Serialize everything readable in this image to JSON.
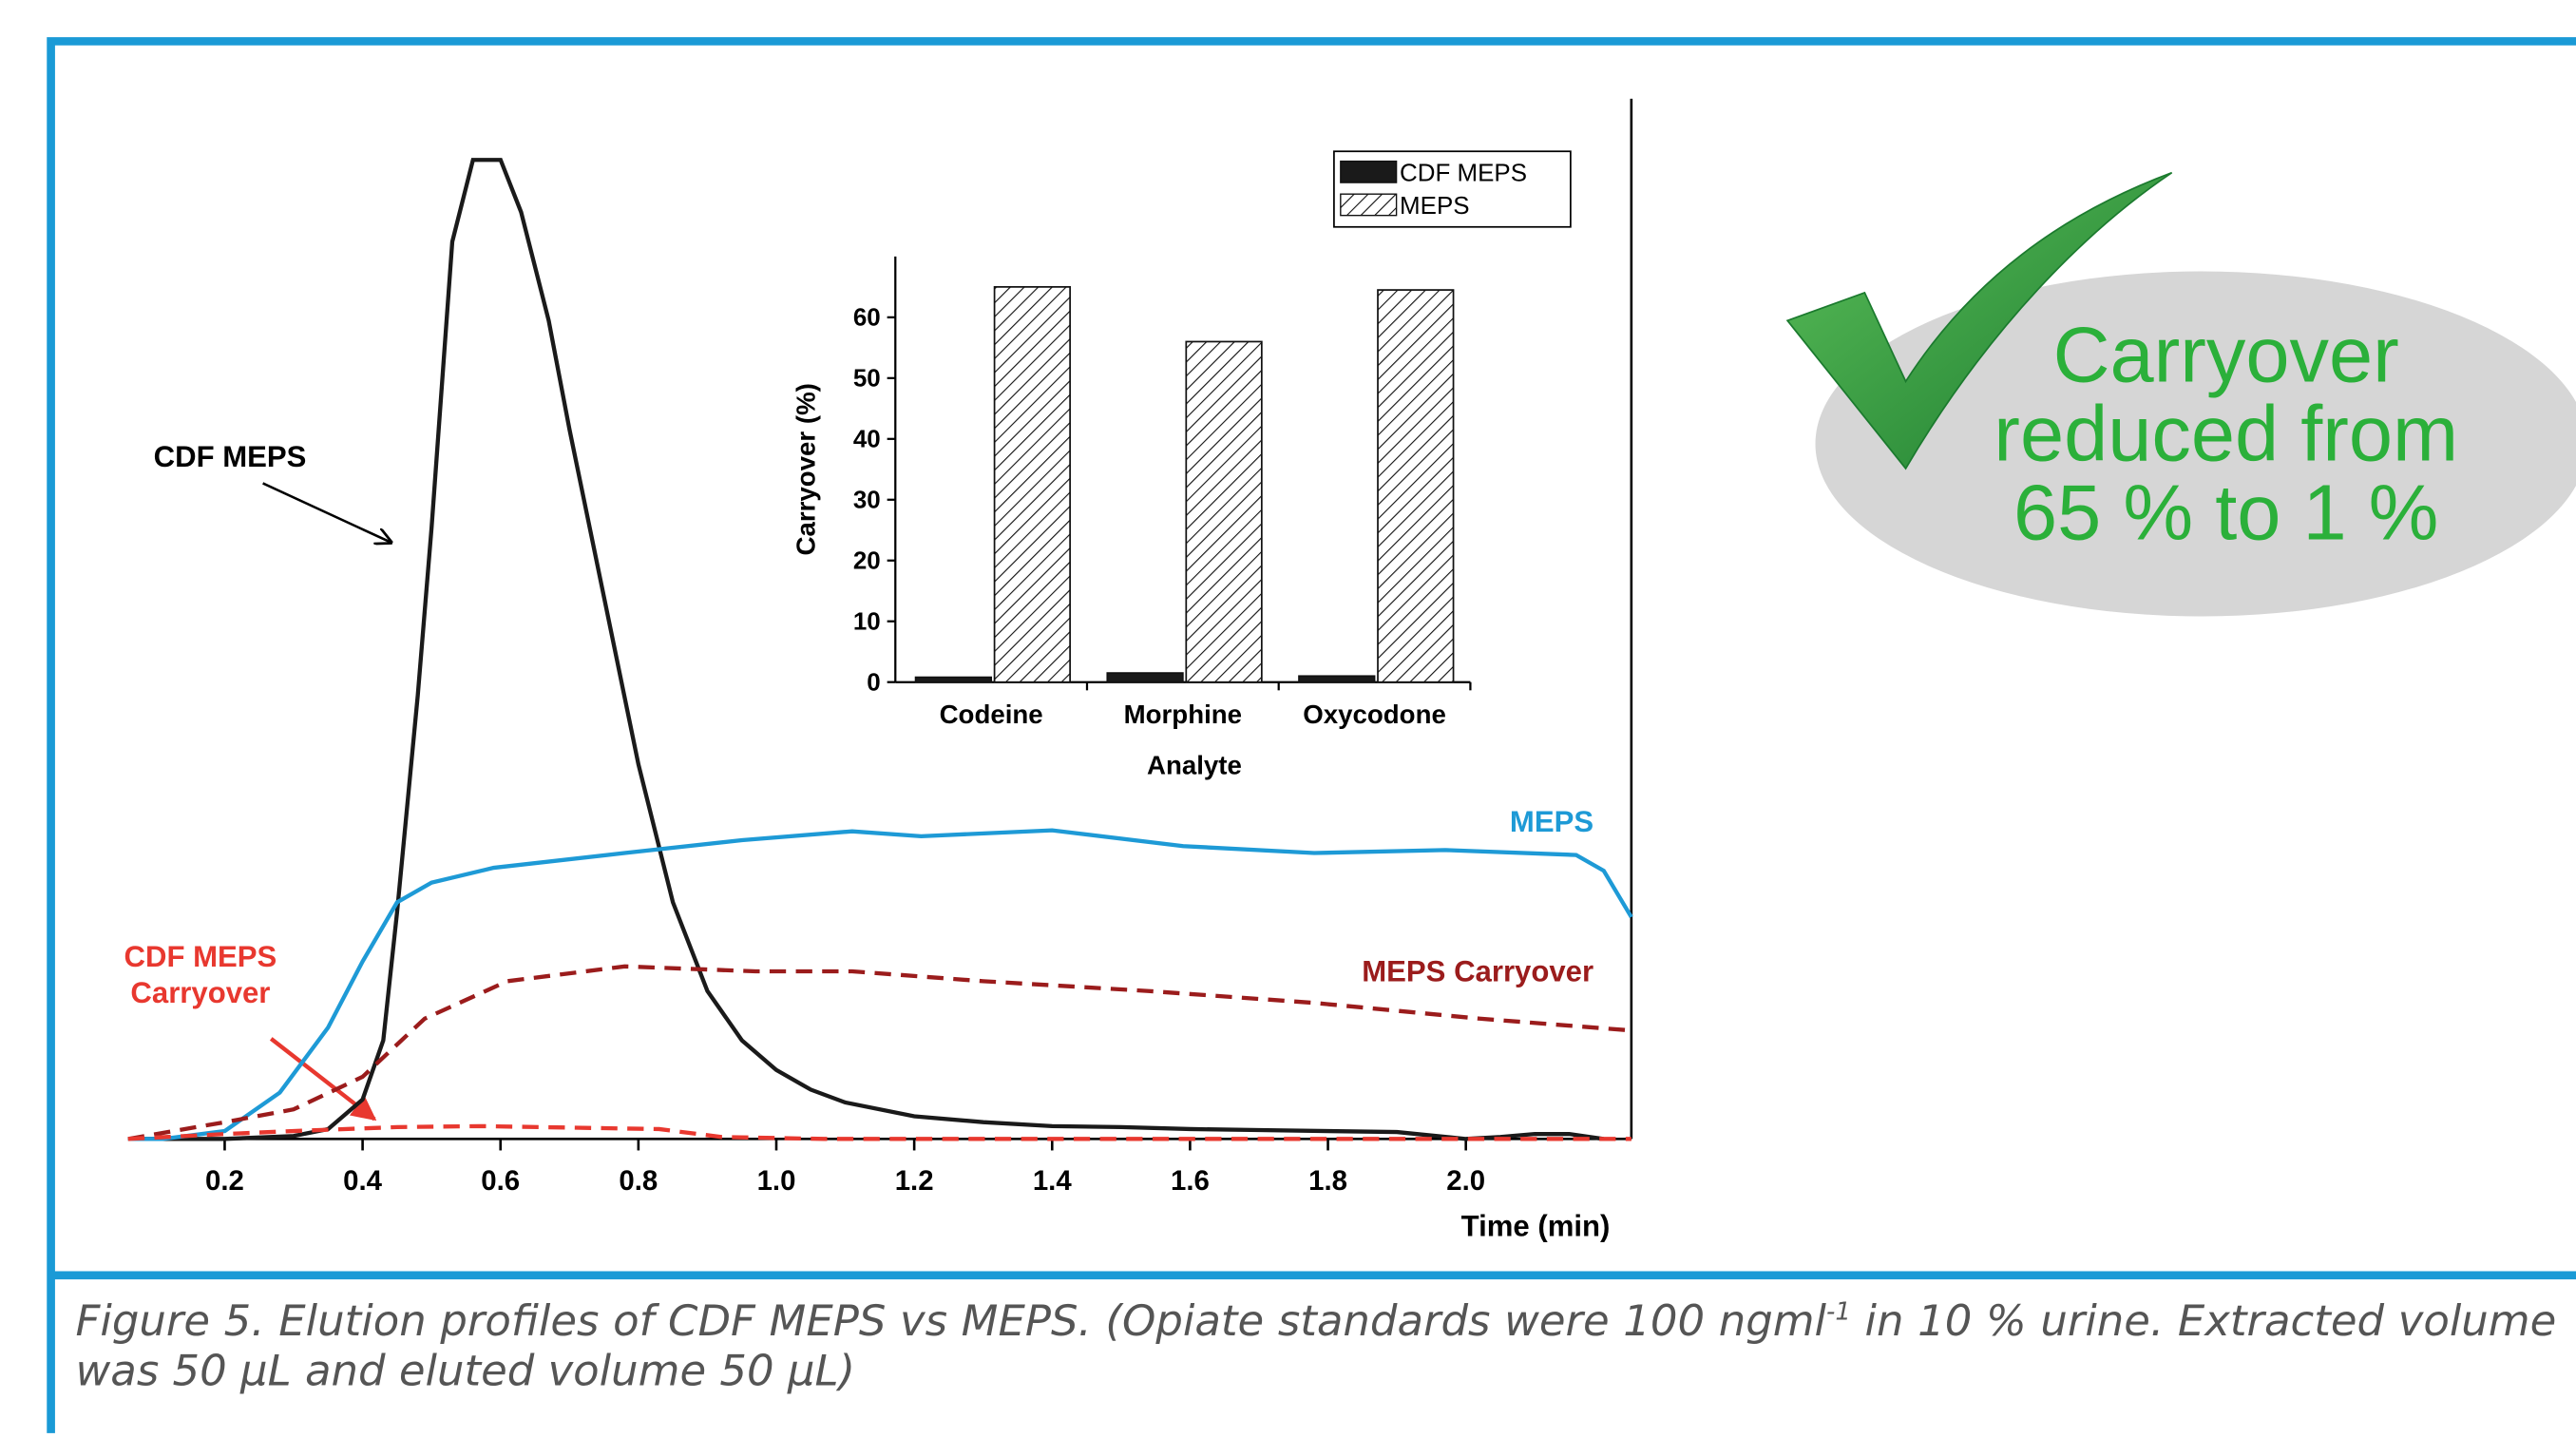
{
  "chart_data": [
    {
      "type": "line",
      "xlabel": "Time (min)",
      "xlim": [
        0.06,
        2.24
      ],
      "ylim": [
        0,
        100
      ],
      "xticks": [
        0.2,
        0.4,
        0.6,
        0.8,
        {
          "value": 1,
          "label": "1.0"
        },
        1.2,
        1.4,
        1.6,
        1.8,
        {
          "value": 2,
          "label": "2.0"
        }
      ],
      "series": [
        {
          "name": "CDF MEPS",
          "color": "#1a1a1a",
          "dash": false,
          "x": [
            0.06,
            0.2,
            0.3,
            0.35,
            0.4,
            0.43,
            0.45,
            0.48,
            0.5,
            0.53,
            0.56,
            0.6,
            0.63,
            0.67,
            0.7,
            0.75,
            0.8,
            0.85,
            0.9,
            0.95,
            1.0,
            1.05,
            1.1,
            1.2,
            1.3,
            1.4,
            1.5,
            1.6,
            1.7,
            1.8,
            1.9,
            2.0,
            2.05,
            2.1,
            2.15,
            2.2
          ],
          "values": [
            0,
            0,
            0.3,
            1,
            4,
            10,
            23,
            45,
            62,
            91,
            99.3,
            99.3,
            94,
            83,
            72,
            55,
            38,
            24,
            15,
            10,
            7,
            5,
            3.7,
            2.3,
            1.7,
            1.3,
            1.2,
            1,
            0.9,
            0.8,
            0.7,
            0,
            0.2,
            0.5,
            0.5,
            0
          ]
        },
        {
          "name": "MEPS",
          "color": "#1e9ad6",
          "dash": false,
          "x": [
            0.06,
            0.11,
            0.2,
            0.28,
            0.35,
            0.4,
            0.45,
            0.5,
            0.59,
            0.78,
            0.95,
            1.11,
            1.21,
            1.4,
            1.59,
            1.78,
            1.97,
            2.16,
            2.2,
            2.24
          ],
          "values": [
            0,
            0,
            0.8,
            4.7,
            11.3,
            18,
            24,
            26,
            27.5,
            29,
            30.3,
            31.2,
            30.7,
            31.3,
            29.7,
            29,
            29.3,
            28.8,
            27.2,
            22.5
          ]
        },
        {
          "name": "MEPS Carryover",
          "color": "#9b1c1c",
          "dash": true,
          "x": [
            0.06,
            0.2,
            0.3,
            0.4,
            0.49,
            0.61,
            0.78,
            0.97,
            1.11,
            1.3,
            1.54,
            1.78,
            2.02,
            2.24
          ],
          "values": [
            0,
            1.7,
            3,
            6.3,
            12.2,
            16,
            17.5,
            17,
            17,
            16,
            15,
            13.8,
            12.2,
            11
          ]
        },
        {
          "name": "CDF MEPS Carryover",
          "color": "#e8382f",
          "dash": true,
          "x": [
            0.06,
            0.2,
            0.3,
            0.45,
            0.57,
            0.83,
            0.92,
            1.07,
            2.24
          ],
          "values": [
            0,
            0.5,
            0.8,
            1.2,
            1.3,
            1,
            0.2,
            0,
            0
          ]
        }
      ]
    },
    {
      "type": "bar",
      "xlabel": "Analyte",
      "ylabel": "Carryover (%)",
      "ylim": [
        0,
        70
      ],
      "yticks": [
        0,
        10,
        20,
        30,
        40,
        50,
        60
      ],
      "legend": "top-right",
      "categories": [
        "Codeine",
        "Morphine",
        "Oxycodone"
      ],
      "series": [
        {
          "name": "CDF MEPS",
          "color": "#1a1a1a",
          "values": [
            0.8,
            1.5,
            1.0
          ]
        },
        {
          "name": "MEPS",
          "color": "hatch",
          "values": [
            65,
            56,
            64.5
          ]
        }
      ]
    }
  ],
  "callout": [
    "Carryover",
    "reduced from",
    "65 % to 1 %"
  ],
  "caption": {
    "text": "Figure 5. Elution profiles of CDF MEPS vs MEPS. (Opiate standards were 100 ngml",
    "superscript": "-1",
    "text_end": " in 10 % urine. Extracted volume was 50 µL and eluted volume 50 µL)"
  }
}
